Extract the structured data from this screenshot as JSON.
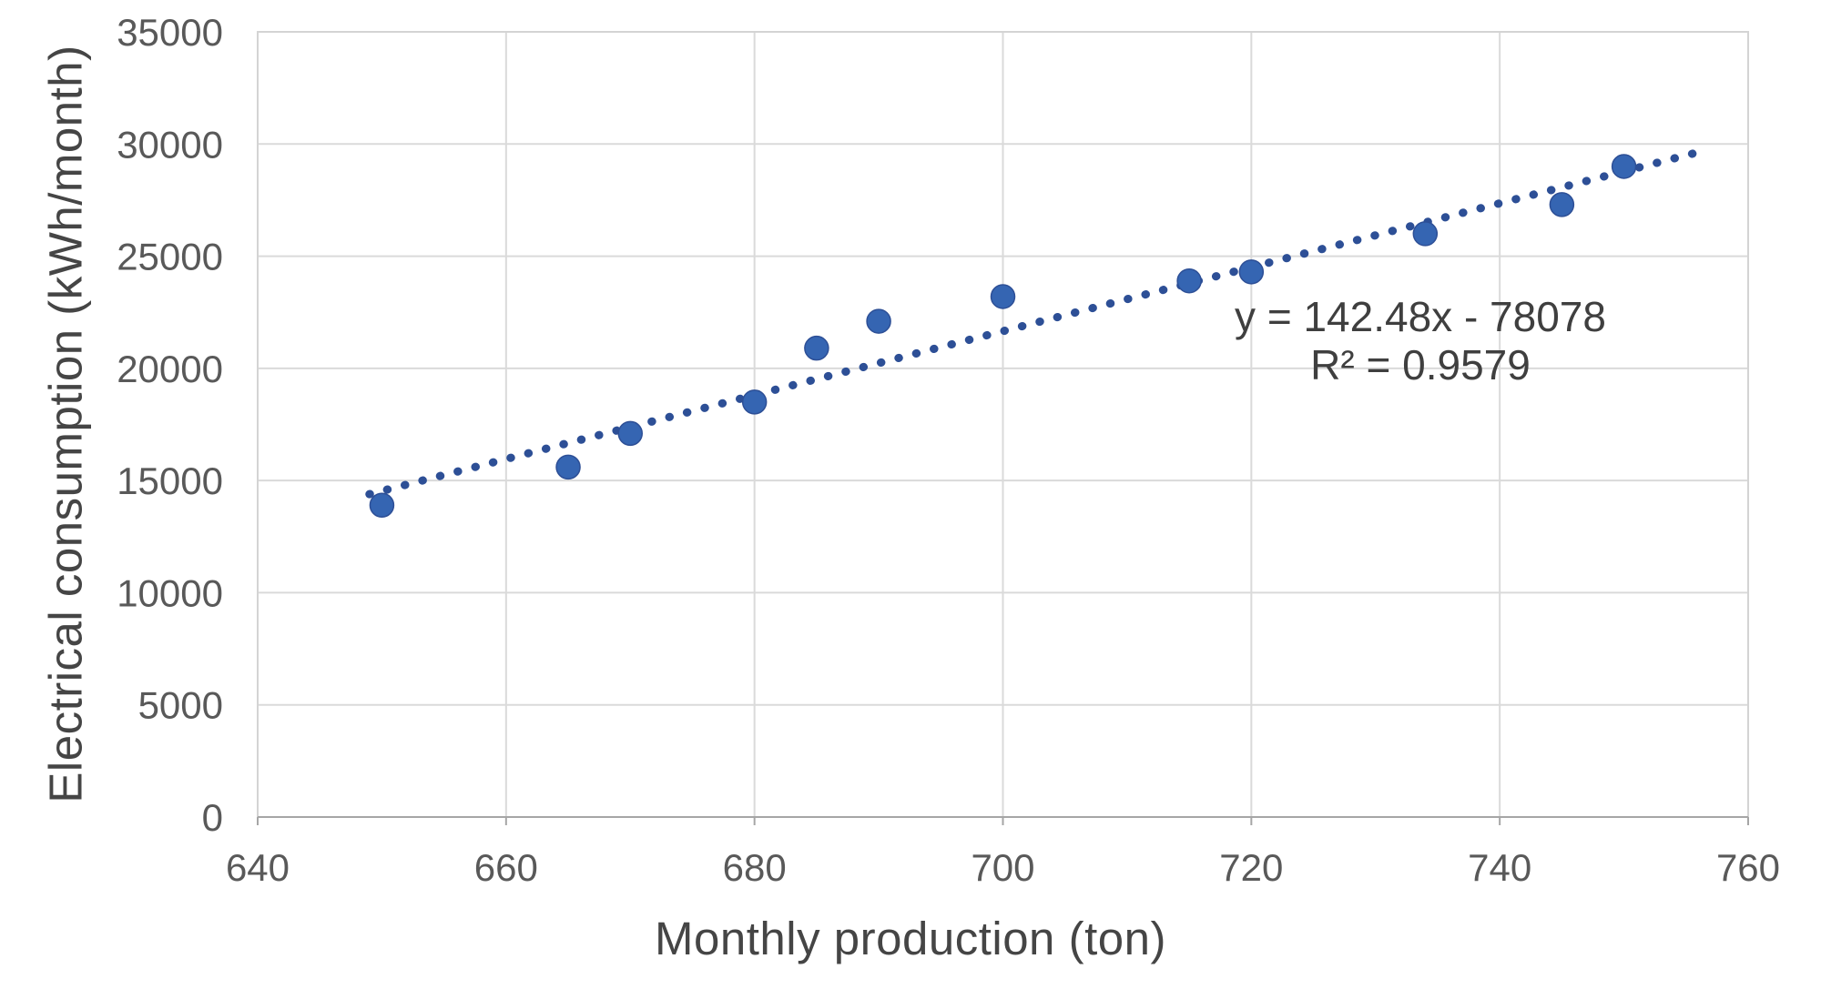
{
  "chart_data": {
    "type": "scatter",
    "title": "",
    "xlabel": "Monthly production (ton)",
    "ylabel": "Electrical consumption (kWh/month)",
    "xlim": [
      640,
      760
    ],
    "ylim": [
      0,
      35000
    ],
    "x_ticks": [
      640,
      660,
      680,
      700,
      720,
      740,
      760
    ],
    "y_ticks": [
      0,
      5000,
      10000,
      15000,
      20000,
      25000,
      30000,
      35000
    ],
    "grid": true,
    "legend": "none",
    "points": [
      {
        "x": 650,
        "y": 13900
      },
      {
        "x": 665,
        "y": 15600
      },
      {
        "x": 670,
        "y": 17100
      },
      {
        "x": 680,
        "y": 18500
      },
      {
        "x": 685,
        "y": 20900
      },
      {
        "x": 690,
        "y": 22100
      },
      {
        "x": 700,
        "y": 23200
      },
      {
        "x": 715,
        "y": 23900
      },
      {
        "x": 720,
        "y": 24300
      },
      {
        "x": 734,
        "y": 26000
      },
      {
        "x": 745,
        "y": 27300
      },
      {
        "x": 750,
        "y": 29000
      }
    ],
    "trendline": {
      "style": "dotted",
      "slope": 142.48,
      "intercept": -78078,
      "x_start": 649,
      "x_end": 756,
      "equation_label": "y = 142.48x - 78078",
      "r2_label": "R² = 0.9579"
    },
    "colors": {
      "marker": "#3565b2",
      "trendline": "#2d4f96",
      "gridline": "#dadada",
      "plot_border": "#d4d4d4",
      "axis_line": "#a6a6a6",
      "tick_text": "#595959",
      "title_text": "#454545"
    }
  }
}
